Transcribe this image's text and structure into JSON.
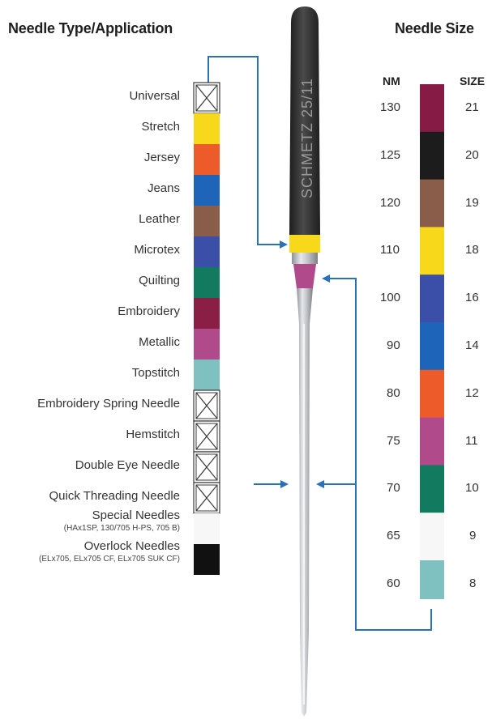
{
  "header": {
    "left_title": "Needle Type/Application",
    "right_title": "Needle Size"
  },
  "needle_imprint": "SCHMETZ 25/11",
  "types": [
    {
      "label": "Universal",
      "swatch": "cross",
      "color": "#ffffff"
    },
    {
      "label": "Stretch",
      "swatch": "solid",
      "color": "#f7d81a"
    },
    {
      "label": "Jersey",
      "swatch": "solid",
      "color": "#ee5b2a"
    },
    {
      "label": "Jeans",
      "swatch": "solid",
      "color": "#1e64b8"
    },
    {
      "label": "Leather",
      "swatch": "solid",
      "color": "#8a5d4a"
    },
    {
      "label": "Microtex",
      "swatch": "solid",
      "color": "#3b4fa8"
    },
    {
      "label": "Quilting",
      "swatch": "solid",
      "color": "#127a5e"
    },
    {
      "label": "Embroidery",
      "swatch": "solid",
      "color": "#8b1e44"
    },
    {
      "label": "Metallic",
      "swatch": "solid",
      "color": "#b04a8a"
    },
    {
      "label": "Topstitch",
      "swatch": "solid",
      "color": "#7ec1c0"
    },
    {
      "label": "Embroidery Spring Needle",
      "swatch": "cross",
      "color": "#ffffff"
    },
    {
      "label": "Hemstitch",
      "swatch": "cross",
      "color": "#ffffff"
    },
    {
      "label": "Double Eye Needle",
      "swatch": "cross",
      "color": "#ffffff"
    },
    {
      "label": "Quick Threading Needle",
      "swatch": "cross",
      "color": "#ffffff"
    },
    {
      "label": "Special Needles",
      "sub": "(HAx1SP, 130/705 H-PS, 705 B)",
      "swatch": "solid",
      "color": "#f7f7f7"
    },
    {
      "label": "Overlock Needles",
      "sub": "(ELx705, ELx705 CF, ELx705 SUK CF)",
      "swatch": "solid",
      "color": "#111111"
    }
  ],
  "sizes": {
    "nm_header": "NM",
    "size_header": "SIZE",
    "rows": [
      {
        "nm": "130",
        "size": "21",
        "color": "#861c45"
      },
      {
        "nm": "125",
        "size": "20",
        "color": "#1c1c1c"
      },
      {
        "nm": "120",
        "size": "19",
        "color": "#8a5d4a"
      },
      {
        "nm": "110",
        "size": "18",
        "color": "#f7d81a"
      },
      {
        "nm": "100",
        "size": "16",
        "color": "#3b4fa8"
      },
      {
        "nm": "90",
        "size": "14",
        "color": "#1e64b8"
      },
      {
        "nm": "80",
        "size": "12",
        "color": "#ee5b2a"
      },
      {
        "nm": "75",
        "size": "11",
        "color": "#b04a8a"
      },
      {
        "nm": "70",
        "size": "10",
        "color": "#127a5e"
      },
      {
        "nm": "65",
        "size": "9",
        "color": "#f7f7f7"
      },
      {
        "nm": "60",
        "size": "8",
        "color": "#7ec1c0"
      }
    ]
  },
  "colors": {
    "arrow": "#2a72b8",
    "needle_dark": "#2d2d2d",
    "needle_steel": "#b9bcc0"
  }
}
